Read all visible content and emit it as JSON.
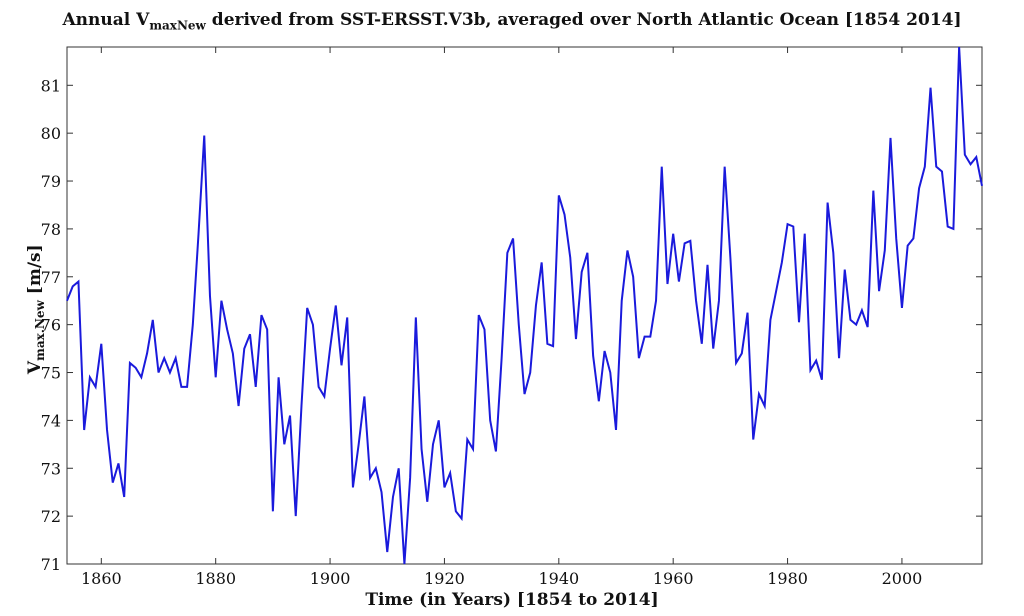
{
  "chart_data": {
    "type": "line",
    "title_main": "Annual V",
    "title_sub": "maxNew",
    "title_rest": " derived from SST-ERSST.V3b, averaged over North Atlantic Ocean [1854 2014]",
    "xlabel": "Time (in Years) [1854 to 2014]",
    "ylabel_main": "V",
    "ylabel_sub": "max.New",
    "ylabel_rest": " [m/s]",
    "xlim": [
      1854,
      2014
    ],
    "ylim": [
      71,
      81.8
    ],
    "xticks": [
      1860,
      1880,
      1900,
      1920,
      1940,
      1960,
      1980,
      2000
    ],
    "yticks": [
      71,
      72,
      73,
      74,
      75,
      76,
      77,
      78,
      79,
      80,
      81
    ],
    "grid": false,
    "line_color": "#1a1adc",
    "series": [
      {
        "x": [
          1854,
          1855,
          1856,
          1857,
          1858,
          1859,
          1860,
          1861,
          1862,
          1863,
          1864,
          1865,
          1866,
          1867,
          1868,
          1869,
          1870,
          1871,
          1872,
          1873,
          1874,
          1875,
          1876,
          1877,
          1878,
          1879,
          1880,
          1881,
          1882,
          1883,
          1884,
          1885,
          1886,
          1887,
          1888,
          1889,
          1890,
          1891,
          1892,
          1893,
          1894,
          1895,
          1896,
          1897,
          1898,
          1899,
          1900,
          1901,
          1902,
          1903,
          1904,
          1905,
          1906,
          1907,
          1908,
          1909,
          1910,
          1911,
          1912,
          1913,
          1914,
          1915,
          1916,
          1917,
          1918,
          1919,
          1920,
          1921,
          1922,
          1923,
          1924,
          1925,
          1926,
          1927,
          1928,
          1929,
          1930,
          1931,
          1932,
          1933,
          1934,
          1935,
          1936,
          1937,
          1938,
          1939,
          1940,
          1941,
          1942,
          1943,
          1944,
          1945,
          1946,
          1947,
          1948,
          1949,
          1950,
          1951,
          1952,
          1953,
          1954,
          1955,
          1956,
          1957,
          1958,
          1959,
          1960,
          1961,
          1962,
          1963,
          1964,
          1965,
          1966,
          1967,
          1968,
          1969,
          1970,
          1971,
          1972,
          1973,
          1974,
          1975,
          1976,
          1977,
          1978,
          1979,
          1980,
          1981,
          1982,
          1983,
          1984,
          1985,
          1986,
          1987,
          1988,
          1989,
          1990,
          1991,
          1992,
          1993,
          1994,
          1995,
          1996,
          1997,
          1998,
          1999,
          2000,
          2001,
          2002,
          2003,
          2004,
          2005,
          2006,
          2007,
          2008,
          2009,
          2010,
          2011,
          2012,
          2013,
          2014
        ],
        "values": [
          76.5,
          76.8,
          76.9,
          73.8,
          74.9,
          74.7,
          75.6,
          73.8,
          72.7,
          73.1,
          72.4,
          75.2,
          75.1,
          74.9,
          75.4,
          76.1,
          75.0,
          75.3,
          75.0,
          75.3,
          74.7,
          74.7,
          76.0,
          77.9,
          79.95,
          76.6,
          74.9,
          76.5,
          75.9,
          75.4,
          74.3,
          75.5,
          75.8,
          74.7,
          76.2,
          75.9,
          72.1,
          74.9,
          73.5,
          74.1,
          72.0,
          74.3,
          76.35,
          76.0,
          74.7,
          74.5,
          75.5,
          76.4,
          75.15,
          76.15,
          72.6,
          73.5,
          74.5,
          72.8,
          73.0,
          72.5,
          71.25,
          72.4,
          73.0,
          70.95,
          72.8,
          76.15,
          73.4,
          72.3,
          73.5,
          74.0,
          72.6,
          72.9,
          72.1,
          71.95,
          73.6,
          73.4,
          76.2,
          75.9,
          74.0,
          73.35,
          75.3,
          77.5,
          77.8,
          76.0,
          74.55,
          75.0,
          76.4,
          77.3,
          75.6,
          75.55,
          78.7,
          78.3,
          77.4,
          75.7,
          77.1,
          77.5,
          75.35,
          74.4,
          75.45,
          75.0,
          73.8,
          76.5,
          77.55,
          77.0,
          75.3,
          75.75,
          75.75,
          76.5,
          79.3,
          76.85,
          77.9,
          76.9,
          77.7,
          77.75,
          76.5,
          75.6,
          77.25,
          75.5,
          76.5,
          79.3,
          77.4,
          75.2,
          75.4,
          76.25,
          73.6,
          74.55,
          74.3,
          76.1,
          76.7,
          77.3,
          78.1,
          78.05,
          76.05,
          77.9,
          75.05,
          75.25,
          74.85,
          78.55,
          77.5,
          75.3,
          77.15,
          76.1,
          76.0,
          76.3,
          75.95,
          78.8,
          76.7,
          77.55,
          79.9,
          77.8,
          76.35,
          77.65,
          77.8,
          78.85,
          79.3,
          80.95,
          79.3,
          79.2,
          78.05,
          78.0,
          81.8,
          79.55,
          79.35,
          79.5,
          78.9
        ]
      }
    ]
  }
}
